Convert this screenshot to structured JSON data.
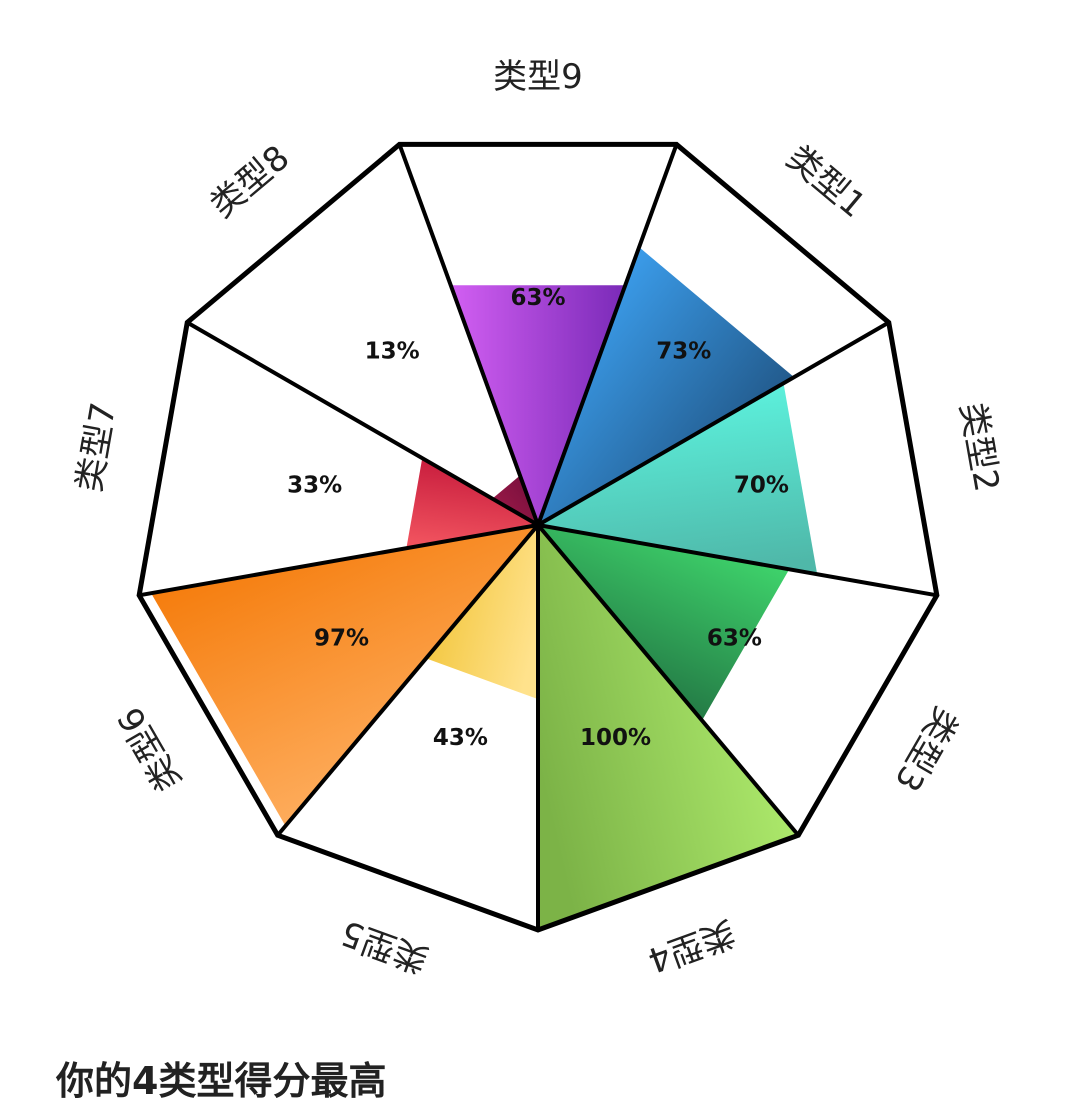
{
  "chart_data": {
    "type": "radial-bar",
    "categories": [
      "类型1",
      "类型2",
      "类型3",
      "类型4",
      "类型5",
      "类型6",
      "类型7",
      "类型8",
      "类型9"
    ],
    "values": [
      73,
      70,
      63,
      100,
      43,
      97,
      33,
      13,
      63
    ],
    "value_labels": [
      "73%",
      "70%",
      "63%",
      "100%",
      "43%",
      "97%",
      "33%",
      "13%",
      "63%"
    ],
    "ylim": [
      0,
      100
    ],
    "colors": {
      "类型1": [
        "#1e4f7c",
        "#3ea4f5"
      ],
      "类型2": [
        "#4fb8a9",
        "#5df5e0"
      ],
      "类型3": [
        "#1f6b3f",
        "#3fd56c"
      ],
      "类型4": [
        "#7cb347",
        "#b3f070"
      ],
      "类型5": [
        "#f2c53a",
        "#ffe28c"
      ],
      "类型6": [
        "#f57c0c",
        "#ffb469"
      ],
      "类型7": [
        "#c5193b",
        "#f0525e"
      ],
      "类型8": [
        "#7a0f3d",
        "#9a1a48"
      ],
      "类型9": [
        "#7a2ab8",
        "#d25ff2"
      ]
    }
  },
  "result": {
    "text": "你的4类型得分最高"
  }
}
